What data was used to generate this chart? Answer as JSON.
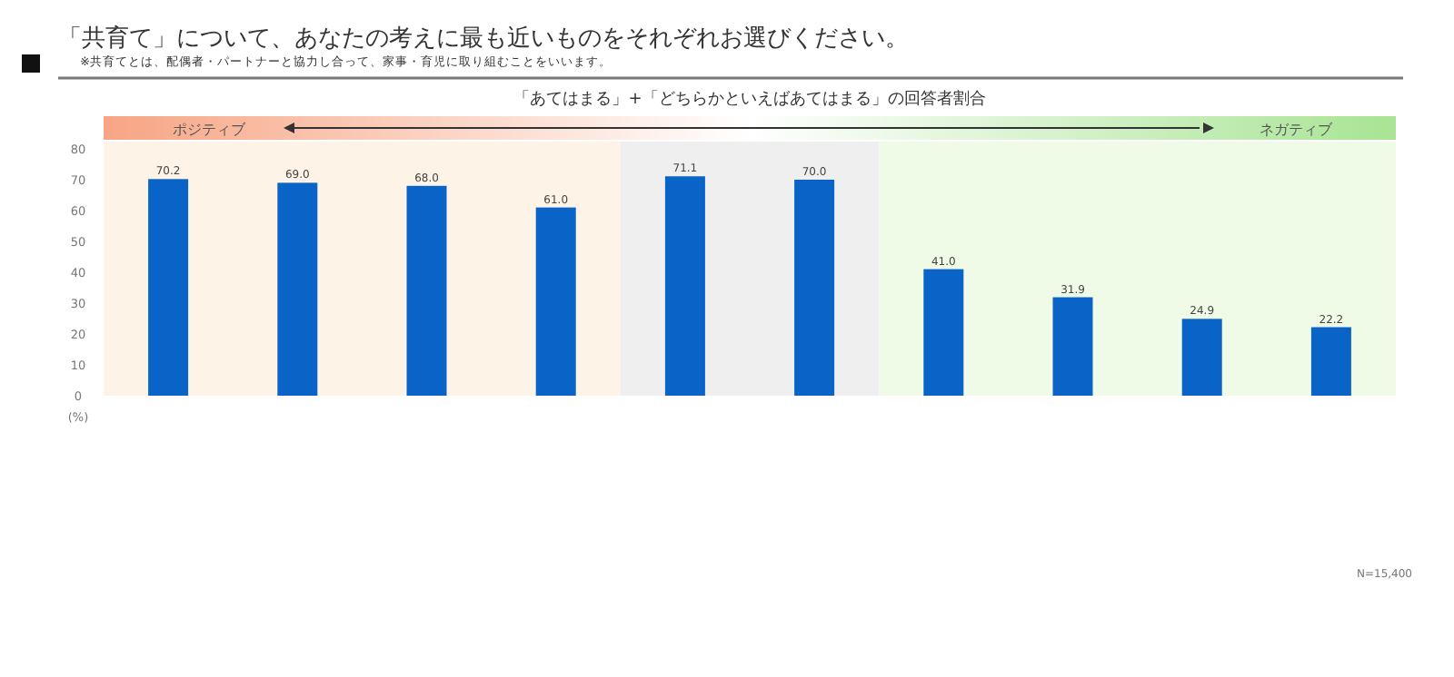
{
  "chart_data": {
    "type": "bar",
    "title": "「共育て」について、あなたの考えに最も近いものをそれぞれお選びください。",
    "subtitle": "※共育てとは、配偶者・パートナーと協力し合って、家事・育児に取り組むことをいいます。",
    "xlabel": "「あてはまる」+「どちらかといえばあてはまる」の回答者割合",
    "ylabel": "(%)",
    "categories": [
      null,
      null,
      null,
      null,
      null,
      null,
      null,
      null,
      null,
      null
    ],
    "values": [
      70.2,
      69.0,
      68.0,
      61.0,
      71.1,
      70.0,
      41.0,
      31.9,
      24.9,
      22.2
    ],
    "value_labels": [
      "70.2",
      "69.0",
      "68.0",
      "61.0",
      "71.1",
      "70.0",
      "41.0",
      "31.9",
      "24.9",
      "22.2"
    ],
    "color": "#0a64c8",
    "ylim": [
      0,
      80
    ],
    "yticks": [
      0,
      10,
      20,
      30,
      40,
      50,
      60,
      70,
      80
    ],
    "grid": false,
    "annotations": [
      "ポジティブ",
      "ネガティブ",
      "N=15,400"
    ]
  }
}
